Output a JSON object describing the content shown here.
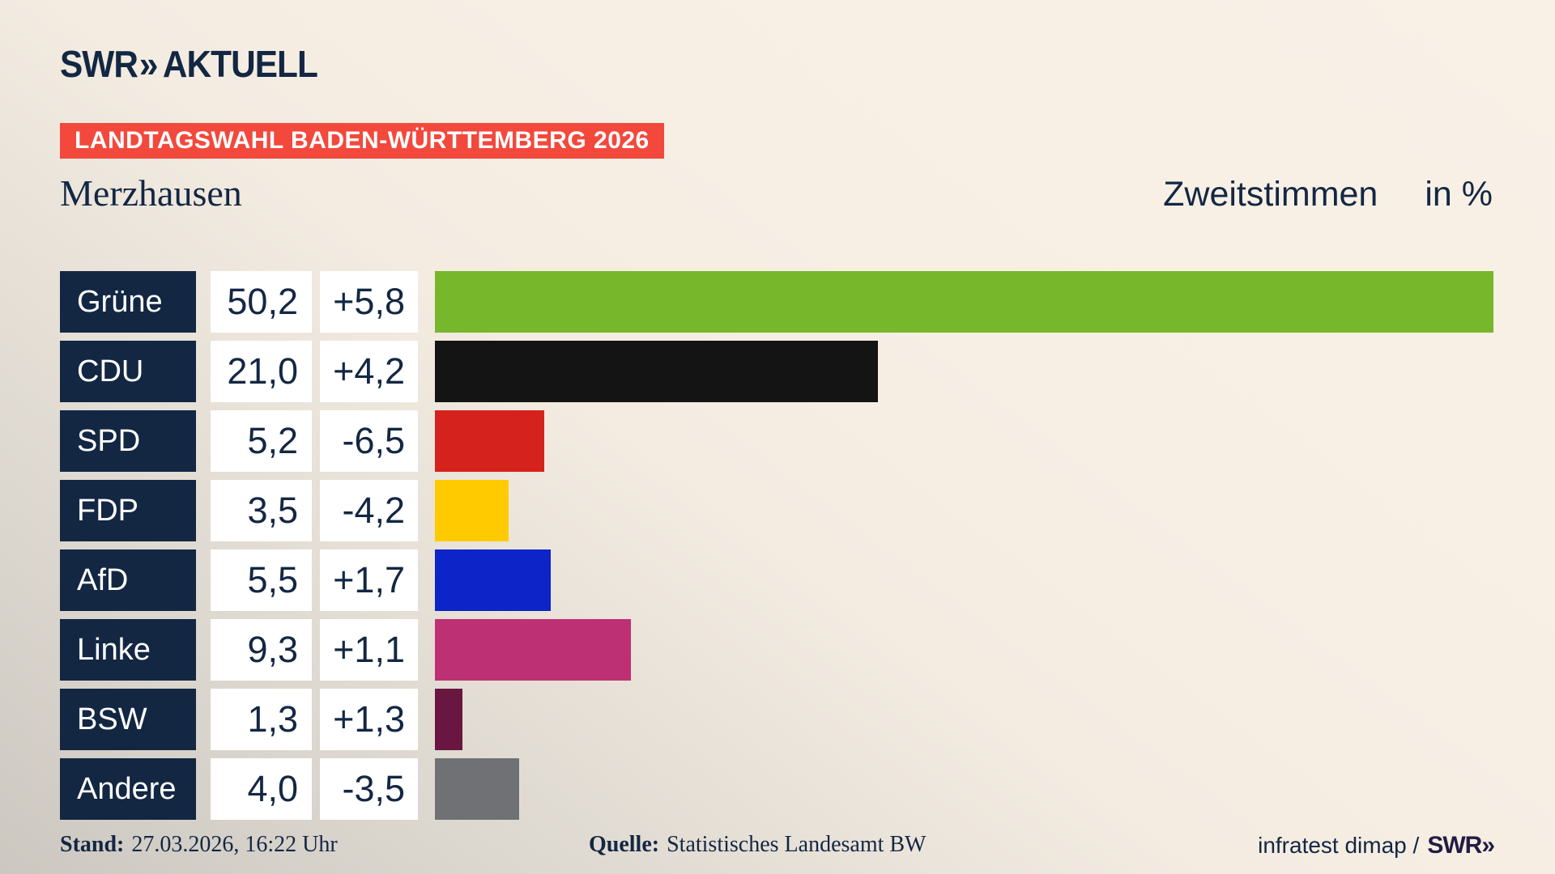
{
  "brand": {
    "logo_swr": "SWR",
    "logo_chevrons": "»",
    "logo_suffix": "AKTUELL"
  },
  "banner": {
    "text": "LANDTAGSWAHL BADEN-WÜRTTEMBERG 2026",
    "bg": "#f2493c"
  },
  "title": "Merzhausen",
  "subtitle": {
    "label": "Zweitstimmen",
    "unit": "in %"
  },
  "chart_data": {
    "type": "bar",
    "orientation": "horizontal",
    "title": "Landtagswahl Baden-Württemberg 2026 — Merzhausen, Zweitstimmen in %",
    "unit": "%",
    "xmax": 50.2,
    "categories": [
      "Grüne",
      "CDU",
      "SPD",
      "FDP",
      "AfD",
      "Linke",
      "BSW",
      "Andere"
    ],
    "values": [
      50.2,
      21.0,
      5.2,
      3.5,
      5.5,
      9.3,
      1.3,
      4.0
    ],
    "value_labels": [
      "50,2",
      "21,0",
      "5,2",
      "3,5",
      "5,5",
      "9,3",
      "1,3",
      "4,0"
    ],
    "changes": [
      5.8,
      4.2,
      -6.5,
      -4.2,
      1.7,
      1.1,
      1.3,
      -3.5
    ],
    "change_labels": [
      "+5,8",
      "+4,2",
      "-6,5",
      "-4,2",
      "+1,7",
      "+1,1",
      "+1,3",
      "-3,5"
    ],
    "bar_colors": [
      "#77b72b",
      "#141414",
      "#d6221c",
      "#ffcb00",
      "#0d24c8",
      "#bd3073",
      "#691741",
      "#6f7174"
    ],
    "legend_position": "none",
    "grid": false
  },
  "footer": {
    "stand_label": "Stand:",
    "stand_value": "27.03.2026, 16:22 Uhr",
    "quelle_label": "Quelle:",
    "quelle_value": "Statistisches Landesamt BW",
    "credit": "infratest dimap /",
    "credit_logo": "SWR",
    "credit_logo_chevrons": "»"
  },
  "colors": {
    "navy": "#132743",
    "banner_red": "#f2493c",
    "background_cream": "#f7efe4",
    "background_gray": "#ccc8c1",
    "box_white": "#ffffff"
  }
}
